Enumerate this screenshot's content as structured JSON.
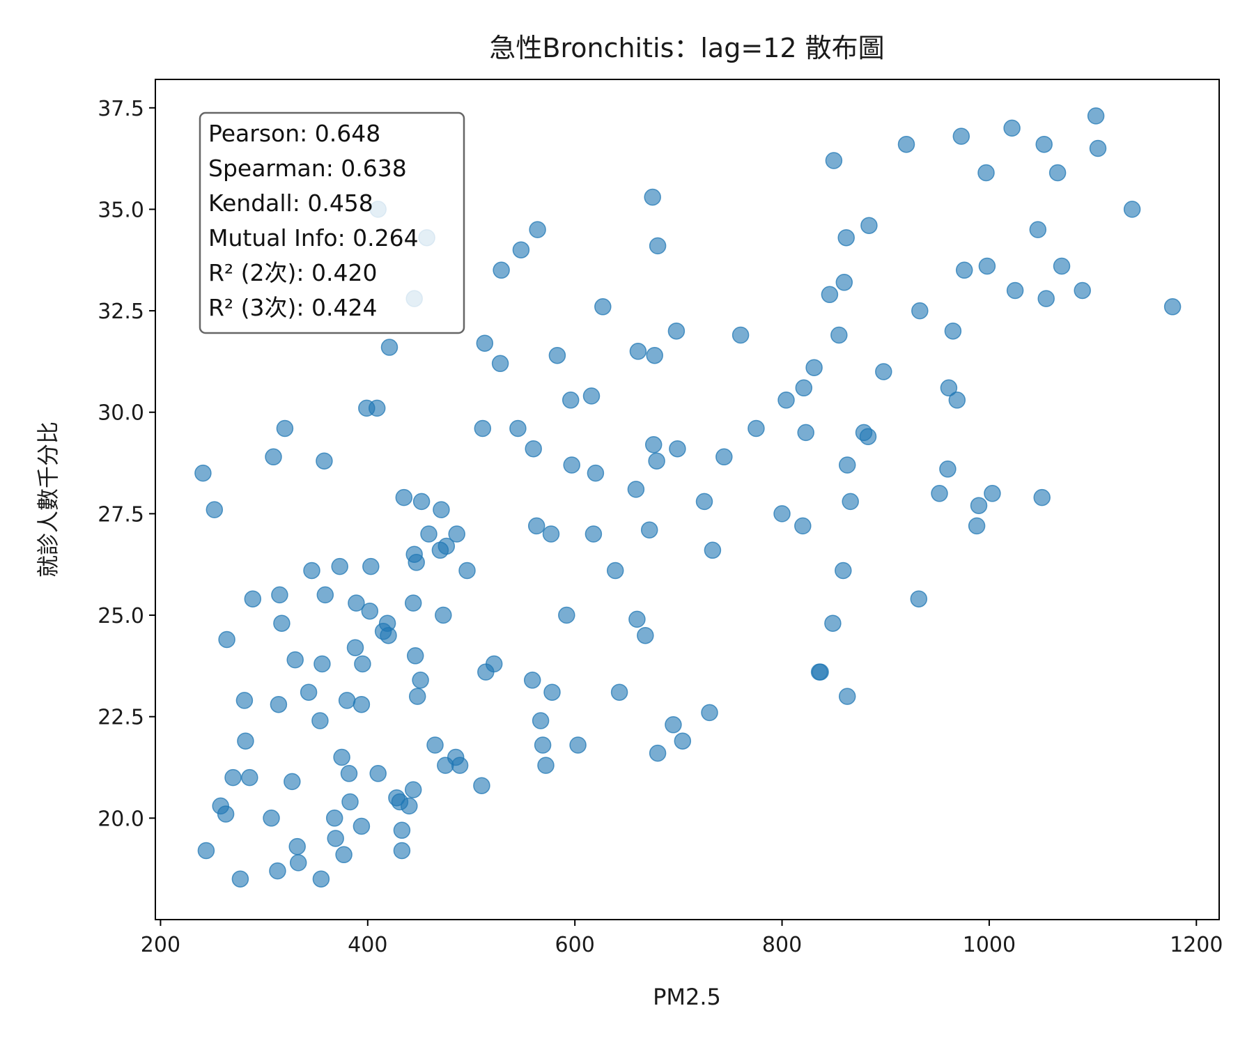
{
  "chart_data": {
    "type": "scatter",
    "title": "急性Bronchitis：lag=12 散布圖",
    "xlabel": "PM2.5",
    "ylabel": "就診人數千分比",
    "xlim": [
      195,
      1222
    ],
    "ylim": [
      17.5,
      38.2
    ],
    "xticks": [
      {
        "value": 200,
        "label": "200"
      },
      {
        "value": 400,
        "label": "400"
      },
      {
        "value": 600,
        "label": "600"
      },
      {
        "value": 800,
        "label": "800"
      },
      {
        "value": 1000,
        "label": "1000"
      },
      {
        "value": 1200,
        "label": "1200"
      }
    ],
    "yticks": [
      {
        "value": 20.0,
        "label": "20.0"
      },
      {
        "value": 22.5,
        "label": "22.5"
      },
      {
        "value": 25.0,
        "label": "25.0"
      },
      {
        "value": 27.5,
        "label": "27.5"
      },
      {
        "value": 30.0,
        "label": "30.0"
      },
      {
        "value": 32.5,
        "label": "32.5"
      },
      {
        "value": 35.0,
        "label": "35.0"
      },
      {
        "value": 37.5,
        "label": "37.5"
      }
    ],
    "grid": false,
    "marker_color": "#1f77b4",
    "marker_alpha": 0.6,
    "stats": [
      "Pearson: 0.648",
      "Spearman: 0.638",
      "Kendall: 0.458",
      "Mutual Info: 0.264",
      "R² (2次): 0.420",
      "R² (3次): 0.424"
    ],
    "points": [
      [
        241,
        28.5
      ],
      [
        252,
        27.6
      ],
      [
        244,
        19.2
      ],
      [
        258,
        20.3
      ],
      [
        263,
        20.1
      ],
      [
        264,
        24.4
      ],
      [
        270,
        21.0
      ],
      [
        277,
        18.5
      ],
      [
        281,
        22.9
      ],
      [
        282,
        21.9
      ],
      [
        286,
        21.0
      ],
      [
        289,
        25.4
      ],
      [
        307,
        20.0
      ],
      [
        309,
        28.9
      ],
      [
        313,
        18.7
      ],
      [
        314,
        22.8
      ],
      [
        315,
        25.5
      ],
      [
        317,
        24.8
      ],
      [
        320,
        29.6
      ],
      [
        327,
        20.9
      ],
      [
        330,
        23.9
      ],
      [
        332,
        19.3
      ],
      [
        333,
        18.9
      ],
      [
        343,
        23.1
      ],
      [
        346,
        26.1
      ],
      [
        354,
        22.4
      ],
      [
        355,
        18.5
      ],
      [
        356,
        23.8
      ],
      [
        358,
        28.8
      ],
      [
        359,
        25.5
      ],
      [
        368,
        20.0
      ],
      [
        369,
        19.5
      ],
      [
        373,
        26.2
      ],
      [
        375,
        21.5
      ],
      [
        377,
        19.1
      ],
      [
        380,
        22.9
      ],
      [
        382,
        21.1
      ],
      [
        383,
        20.4
      ],
      [
        388,
        24.2
      ],
      [
        389,
        25.3
      ],
      [
        394,
        19.8
      ],
      [
        394,
        22.8
      ],
      [
        395,
        23.8
      ],
      [
        399,
        30.1
      ],
      [
        402,
        25.1
      ],
      [
        403,
        26.2
      ],
      [
        409,
        30.1
      ],
      [
        410,
        21.1
      ],
      [
        415,
        24.6
      ],
      [
        419,
        24.8
      ],
      [
        420,
        24.5
      ],
      [
        421,
        31.6
      ],
      [
        428,
        20.5
      ],
      [
        431,
        20.4
      ],
      [
        433,
        19.7
      ],
      [
        433,
        19.2
      ],
      [
        435,
        27.9
      ],
      [
        440,
        20.3
      ],
      [
        444,
        20.7
      ],
      [
        444,
        25.3
      ],
      [
        445,
        26.5
      ],
      [
        446,
        24.0
      ],
      [
        447,
        26.3
      ],
      [
        448,
        23.0
      ],
      [
        451,
        23.4
      ],
      [
        452,
        27.8
      ],
      [
        459,
        27.0
      ],
      [
        465,
        21.8
      ],
      [
        470,
        26.6
      ],
      [
        471,
        27.6
      ],
      [
        473,
        25.0
      ],
      [
        475,
        21.3
      ],
      [
        476,
        26.7
      ],
      [
        485,
        21.5
      ],
      [
        486,
        27.0
      ],
      [
        489,
        21.3
      ],
      [
        496,
        26.1
      ],
      [
        510,
        20.8
      ],
      [
        511,
        29.6
      ],
      [
        513,
        31.7
      ],
      [
        514,
        23.6
      ],
      [
        522,
        23.8
      ],
      [
        528,
        31.2
      ],
      [
        529,
        33.5
      ],
      [
        545,
        29.6
      ],
      [
        548,
        34.0
      ],
      [
        559,
        23.4
      ],
      [
        560,
        29.1
      ],
      [
        563,
        27.2
      ],
      [
        564,
        34.5
      ],
      [
        567,
        22.4
      ],
      [
        569,
        21.8
      ],
      [
        572,
        21.3
      ],
      [
        577,
        27.0
      ],
      [
        578,
        23.1
      ],
      [
        583,
        31.4
      ],
      [
        592,
        25.0
      ],
      [
        596,
        30.3
      ],
      [
        597,
        28.7
      ],
      [
        603,
        21.8
      ],
      [
        616,
        30.4
      ],
      [
        618,
        27.0
      ],
      [
        620,
        28.5
      ],
      [
        627,
        32.6
      ],
      [
        639,
        26.1
      ],
      [
        643,
        23.1
      ],
      [
        659,
        28.1
      ],
      [
        660,
        24.9
      ],
      [
        661,
        31.5
      ],
      [
        668,
        24.5
      ],
      [
        672,
        27.1
      ],
      [
        675,
        35.3
      ],
      [
        676,
        29.2
      ],
      [
        677,
        31.4
      ],
      [
        679,
        28.8
      ],
      [
        680,
        34.1
      ],
      [
        680,
        21.6
      ],
      [
        695,
        22.3
      ],
      [
        698,
        32.0
      ],
      [
        699,
        29.1
      ],
      [
        704,
        21.9
      ],
      [
        725,
        27.8
      ],
      [
        730,
        22.6
      ],
      [
        733,
        26.6
      ],
      [
        744,
        28.9
      ],
      [
        760,
        31.9
      ],
      [
        775,
        29.6
      ],
      [
        800,
        27.5
      ],
      [
        804,
        30.3
      ],
      [
        820,
        27.2
      ],
      [
        821,
        30.6
      ],
      [
        823,
        29.5
      ],
      [
        831,
        31.1
      ],
      [
        836,
        23.6
      ],
      [
        837,
        23.6
      ],
      [
        846,
        32.9
      ],
      [
        849,
        24.8
      ],
      [
        850,
        36.2
      ],
      [
        855,
        31.9
      ],
      [
        859,
        26.1
      ],
      [
        860,
        33.2
      ],
      [
        862,
        34.3
      ],
      [
        863,
        28.7
      ],
      [
        863,
        23.0
      ],
      [
        866,
        27.8
      ],
      [
        879,
        29.5
      ],
      [
        883,
        29.4
      ],
      [
        884,
        34.6
      ],
      [
        898,
        31.0
      ],
      [
        920,
        36.6
      ],
      [
        932,
        25.4
      ],
      [
        933,
        32.5
      ],
      [
        952,
        28.0
      ],
      [
        960,
        28.6
      ],
      [
        961,
        30.6
      ],
      [
        965,
        32.0
      ],
      [
        969,
        30.3
      ],
      [
        973,
        36.8
      ],
      [
        976,
        33.5
      ],
      [
        988,
        27.2
      ],
      [
        990,
        27.7
      ],
      [
        997,
        35.9
      ],
      [
        998,
        33.6
      ],
      [
        1003,
        28.0
      ],
      [
        1022,
        37.0
      ],
      [
        1025,
        33.0
      ],
      [
        1047,
        34.5
      ],
      [
        1051,
        27.9
      ],
      [
        1053,
        36.6
      ],
      [
        1055,
        32.8
      ],
      [
        1066,
        35.9
      ],
      [
        1070,
        33.6
      ],
      [
        1090,
        33.0
      ],
      [
        1103,
        37.3
      ],
      [
        1105,
        36.5
      ],
      [
        1138,
        35.0
      ],
      [
        1177,
        32.6
      ],
      [
        410,
        35.0
      ],
      [
        457,
        34.3
      ],
      [
        445,
        32.8
      ]
    ]
  }
}
